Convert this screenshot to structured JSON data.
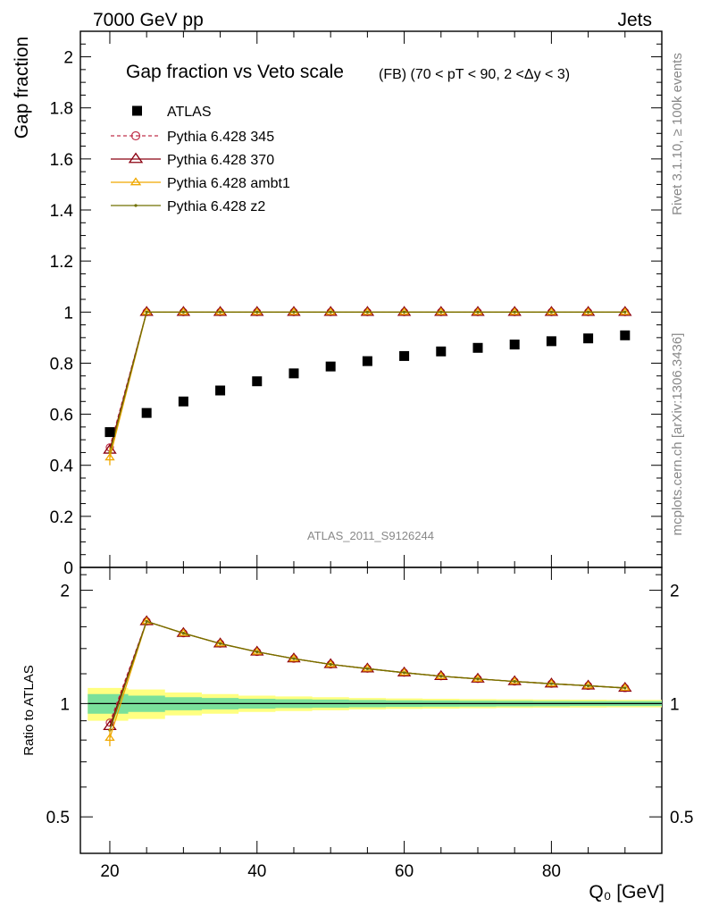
{
  "header": {
    "left": "7000 GeV pp",
    "right": "Jets"
  },
  "side": {
    "rivet": "Rivet 3.1.10, ≥ 100k events",
    "mcplots": "mcplots.cern.ch [arXiv:1306.3436]"
  },
  "colors": {
    "atlas": "#000000",
    "p345": "#c0304a",
    "p370": "#8b0010",
    "ambt1": "#f0a800",
    "z2": "#707000",
    "band_inner": "#7ae09a",
    "band_outer": "#ffff80"
  },
  "chart_data": [
    {
      "type": "scatter",
      "title": "Gap fraction vs Veto scale",
      "subtitle": "(FB) (70 < pT <  90, 2 <Δy < 3)",
      "xlabel": "Q₀ [GeV]",
      "ylabel": "Gap fraction",
      "watermark": "ATLAS_2011_S9126244",
      "xlim": [
        16,
        95
      ],
      "ylim": [
        0,
        2.1
      ],
      "yticks": [
        "0",
        "0.2",
        "0.4",
        "0.6",
        "0.8",
        "1",
        "1.2",
        "1.4",
        "1.6",
        "1.8",
        "2"
      ],
      "legend_position": "top-left",
      "x": [
        20,
        25,
        30,
        35,
        40,
        45,
        50,
        55,
        60,
        65,
        70,
        75,
        80,
        85,
        90
      ],
      "series": [
        {
          "name": "ATLAS",
          "marker": "square",
          "values": [
            0.53,
            0.605,
            0.65,
            0.693,
            0.729,
            0.76,
            0.787,
            0.808,
            0.828,
            0.846,
            0.86,
            0.873,
            0.886,
            0.897,
            0.909
          ]
        },
        {
          "name": "Pythia 6.428 345",
          "marker": "circle",
          "dashed": true,
          "values": [
            0.47,
            1,
            1,
            1,
            1,
            1,
            1,
            1,
            1,
            1,
            1,
            1,
            1,
            1,
            1
          ]
        },
        {
          "name": "Pythia 6.428 370",
          "marker": "triangle-large",
          "values": [
            0.46,
            1,
            1,
            1,
            1,
            1,
            1,
            1,
            1,
            1,
            1,
            1,
            1,
            1,
            1
          ]
        },
        {
          "name": "Pythia 6.428 ambt1",
          "marker": "triangle",
          "values": [
            0.43,
            1,
            1,
            1,
            1,
            1,
            1,
            1,
            1,
            1,
            1,
            1,
            1,
            1,
            1
          ]
        },
        {
          "name": "Pythia 6.428 z2",
          "marker": "dot",
          "values": [
            0.45,
            1,
            1,
            1,
            1,
            1,
            1,
            1,
            1,
            1,
            1,
            1,
            1,
            1,
            1
          ]
        }
      ]
    },
    {
      "type": "line",
      "ylabel": "Ratio to ATLAS",
      "xlabel": "Q₀ [GeV]",
      "xlim": [
        16,
        95
      ],
      "ylim": [
        0.4,
        2.3
      ],
      "ylog": true,
      "xticks": [
        "20",
        "40",
        "60",
        "80"
      ],
      "yticks": [
        "0.5",
        "1",
        "2"
      ],
      "x": [
        20,
        25,
        30,
        35,
        40,
        45,
        50,
        55,
        60,
        65,
        70,
        75,
        80,
        85,
        90
      ],
      "band_inner": [
        0.06,
        0.05,
        0.04,
        0.035,
        0.03,
        0.027,
        0.025,
        0.022,
        0.02,
        0.019,
        0.018,
        0.017,
        0.016,
        0.015,
        0.015
      ],
      "band_outer": [
        0.1,
        0.09,
        0.07,
        0.06,
        0.05,
        0.045,
        0.04,
        0.035,
        0.032,
        0.03,
        0.028,
        0.026,
        0.025,
        0.024,
        0.023
      ],
      "series": [
        {
          "name": "Pythia 6.428 345",
          "values": [
            0.89,
            1.653,
            1.538,
            1.443,
            1.372,
            1.316,
            1.271,
            1.238,
            1.208,
            1.182,
            1.163,
            1.145,
            1.129,
            1.115,
            1.1
          ]
        },
        {
          "name": "Pythia 6.428 370",
          "values": [
            0.87,
            1.653,
            1.538,
            1.443,
            1.372,
            1.316,
            1.271,
            1.238,
            1.208,
            1.182,
            1.163,
            1.145,
            1.129,
            1.115,
            1.1
          ]
        },
        {
          "name": "Pythia 6.428 ambt1",
          "values": [
            0.81,
            1.653,
            1.538,
            1.443,
            1.372,
            1.316,
            1.271,
            1.238,
            1.208,
            1.182,
            1.163,
            1.145,
            1.129,
            1.115,
            1.1
          ]
        },
        {
          "name": "Pythia 6.428 z2",
          "values": [
            0.85,
            1.653,
            1.538,
            1.443,
            1.372,
            1.316,
            1.271,
            1.238,
            1.208,
            1.182,
            1.163,
            1.145,
            1.129,
            1.115,
            1.1
          ]
        }
      ]
    }
  ]
}
